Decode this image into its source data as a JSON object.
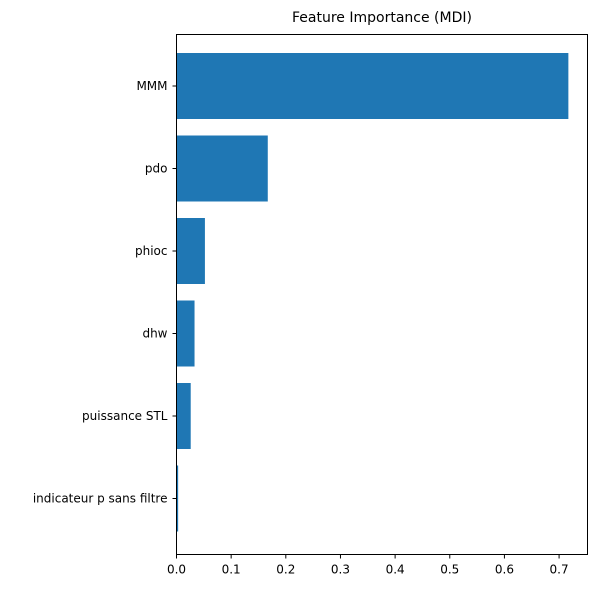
{
  "chart_data": {
    "type": "bar",
    "orientation": "horizontal",
    "title": "Feature Importance (MDI)",
    "xlabel": "",
    "ylabel": "",
    "categories": [
      "MMM",
      "pdo",
      "phioc",
      "dhw",
      "puissance STL",
      "indicateur p sans filtre"
    ],
    "values": [
      0.717,
      0.167,
      0.052,
      0.033,
      0.026,
      0.003
    ],
    "xlim": [
      0,
      0.752
    ],
    "xticks": [
      0.0,
      0.1,
      0.2,
      0.3,
      0.4,
      0.5,
      0.6,
      0.7
    ],
    "xtick_labels": [
      "0.0",
      "0.1",
      "0.2",
      "0.3",
      "0.4",
      "0.5",
      "0.6",
      "0.7"
    ],
    "bar_color": "#1f77b4",
    "grid": false,
    "legend": "none"
  }
}
